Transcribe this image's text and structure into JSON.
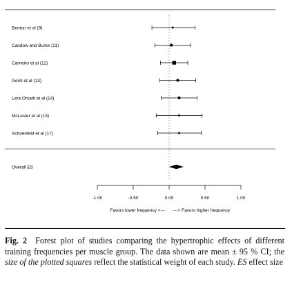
{
  "chart_data": {
    "type": "forest",
    "studies": [
      {
        "name": "Benton et al (9)",
        "es": 0.05,
        "lo": -0.24,
        "hi": 0.36,
        "weight": 0.3
      },
      {
        "name": "Candow and Burke (11)",
        "es": 0.03,
        "lo": -0.2,
        "hi": 0.3,
        "weight": 0.6
      },
      {
        "name": "Carneiro et al (12)",
        "es": 0.07,
        "lo": -0.12,
        "hi": 0.26,
        "weight": 1.0
      },
      {
        "name": "Genti et al (13)",
        "es": 0.12,
        "lo": -0.13,
        "hi": 0.37,
        "weight": 0.55
      },
      {
        "name": "Lera Orsatti et al (14)",
        "es": 0.14,
        "lo": -0.11,
        "hi": 0.39,
        "weight": 0.55
      },
      {
        "name": "McLester et al (15)",
        "es": 0.14,
        "lo": -0.18,
        "hi": 0.46,
        "weight": 0.3
      },
      {
        "name": "Schoenfeld et al (17)",
        "es": 0.14,
        "lo": -0.16,
        "hi": 0.45,
        "weight": 0.3
      }
    ],
    "overall": {
      "name": "Overall ES",
      "es": 0.1,
      "lo": 0.0,
      "hi": 0.2
    },
    "xlim": [
      -1.0,
      1.0
    ],
    "xticks": [
      {
        "value": -1.0,
        "label": "-1.00"
      },
      {
        "value": -0.5,
        "label": "-0.50"
      },
      {
        "value": 0.0,
        "label": "0.00"
      },
      {
        "value": 0.5,
        "label": "0.50"
      },
      {
        "value": 1.0,
        "label": "1.00"
      }
    ],
    "favors_left": "Favors lower frequency <---",
    "favors_right": "---> Favors higher frequency",
    "zero_line": "dashed"
  },
  "caption": {
    "label": "Fig. 2",
    "text_part1": "Forest plot of studies comparing the hypertrophic effects of different training frequencies per muscle group. The data shown are mean ± 95 % CI; the ",
    "text_italic1": "size of the plotted squares",
    "text_part2": " reflect the statistical weight of each study. ",
    "text_italic2": "ES",
    "text_part3": " effect size"
  }
}
